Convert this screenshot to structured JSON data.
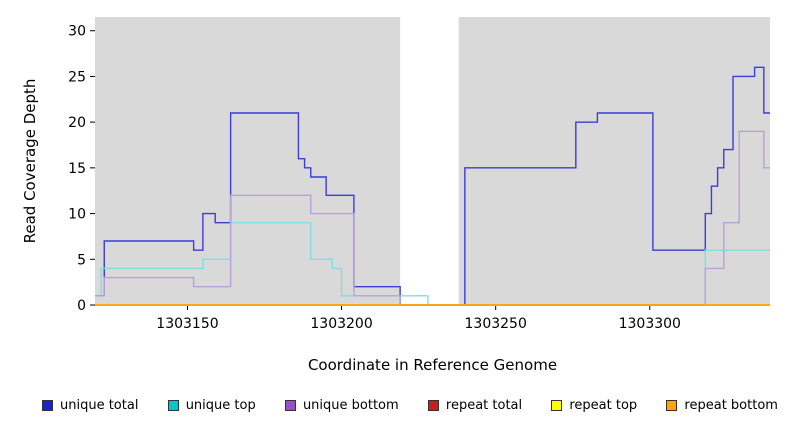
{
  "chart_data": {
    "type": "line",
    "step": true,
    "title": "",
    "xlabel": "Coordinate in Reference Genome",
    "ylabel": "Read Coverage Depth",
    "xlim": [
      1303120,
      1303339
    ],
    "ylim": [
      0,
      31.5
    ],
    "x_ticks": [
      1303150,
      1303200,
      1303250,
      1303300
    ],
    "y_ticks": [
      0,
      5,
      10,
      15,
      20,
      25,
      30
    ],
    "grid": false,
    "legend_position": "bottom",
    "plot_bg": "#ffffff",
    "shade_color": "#d9d9d9",
    "shaded_regions": [
      [
        1303120,
        1303219
      ],
      [
        1303238,
        1303339
      ]
    ],
    "series": [
      {
        "name": "unique total",
        "line_color": "#3c3cd9",
        "legend_color": "#2121c8",
        "steps": [
          [
            1303120,
            1
          ],
          [
            1303123,
            7
          ],
          [
            1303152,
            6
          ],
          [
            1303155,
            10
          ],
          [
            1303159,
            9
          ],
          [
            1303164,
            21
          ],
          [
            1303186,
            16
          ],
          [
            1303188,
            15
          ],
          [
            1303190,
            14
          ],
          [
            1303195,
            12
          ],
          [
            1303204,
            2
          ],
          [
            1303219,
            0
          ],
          [
            1303240,
            15
          ],
          [
            1303276,
            20
          ],
          [
            1303283,
            21
          ],
          [
            1303301,
            6
          ],
          [
            1303318,
            10
          ],
          [
            1303320,
            13
          ],
          [
            1303322,
            15
          ],
          [
            1303324,
            17
          ],
          [
            1303327,
            25
          ],
          [
            1303334,
            26
          ],
          [
            1303337,
            21
          ]
        ]
      },
      {
        "name": "unique top",
        "line_color": "#7fdede",
        "legend_color": "#00c8c8",
        "steps": [
          [
            1303120,
            1
          ],
          [
            1303122,
            4
          ],
          [
            1303155,
            5
          ],
          [
            1303164,
            9
          ],
          [
            1303190,
            5
          ],
          [
            1303197,
            4
          ],
          [
            1303200,
            1
          ],
          [
            1303228,
            0
          ],
          [
            1303318,
            6
          ]
        ]
      },
      {
        "name": "unique bottom",
        "line_color": "#b9a0dd",
        "legend_color": "#9651c8",
        "steps": [
          [
            1303120,
            1
          ],
          [
            1303123,
            3
          ],
          [
            1303152,
            2
          ],
          [
            1303164,
            12
          ],
          [
            1303190,
            10
          ],
          [
            1303204,
            1
          ],
          [
            1303219,
            0
          ],
          [
            1303318,
            4
          ],
          [
            1303324,
            9
          ],
          [
            1303329,
            19
          ],
          [
            1303337,
            15
          ]
        ]
      },
      {
        "name": "repeat total",
        "line_color": "#cc1111",
        "legend_color": "#c81e1e",
        "steps": [
          [
            1303120,
            0
          ]
        ]
      },
      {
        "name": "repeat top",
        "line_color": "#ffff00",
        "legend_color": "#ffff00",
        "steps": [
          [
            1303120,
            0
          ]
        ]
      },
      {
        "name": "repeat bottom",
        "line_color": "#ffa500",
        "legend_color": "#ffa500",
        "steps": [
          [
            1303120,
            0
          ]
        ]
      }
    ]
  }
}
